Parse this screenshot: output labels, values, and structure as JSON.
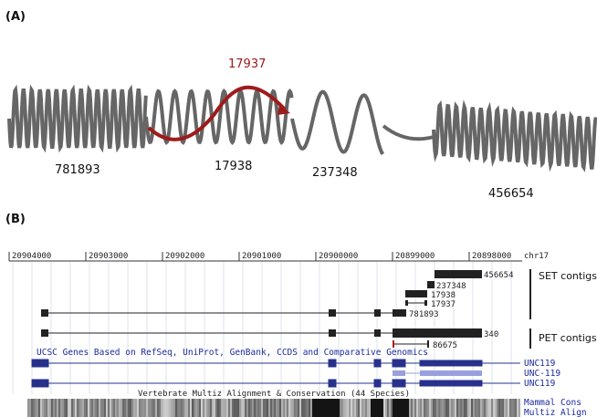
{
  "panel_a": {
    "label": "(A)",
    "red_label": "17937",
    "labels": [
      "781893",
      "17938",
      "237348",
      "456654"
    ]
  },
  "panel_b": {
    "label": "(B)",
    "ruler": [
      "20904000",
      "20903000",
      "20902000",
      "20901000",
      "20900000",
      "20899000",
      "20898000"
    ],
    "chrom": "chr17",
    "contigs": [
      "456654",
      "237348",
      "17938",
      "17937",
      "781893",
      "340",
      "86675"
    ],
    "set_label": "SET contigs",
    "pet_label": "PET contigs",
    "genes_title": "UCSC Genes Based on RefSeq, UniProt, GenBank, CCDS and Comparative Genomics",
    "genes": [
      "UNC119",
      "UNC-119",
      "UNC119"
    ],
    "cons_title": "Vertebrate Multiz Alignment & Conservation (44 Species)",
    "cons_labels": [
      "Mammal Cons",
      "Multiz Align"
    ]
  }
}
